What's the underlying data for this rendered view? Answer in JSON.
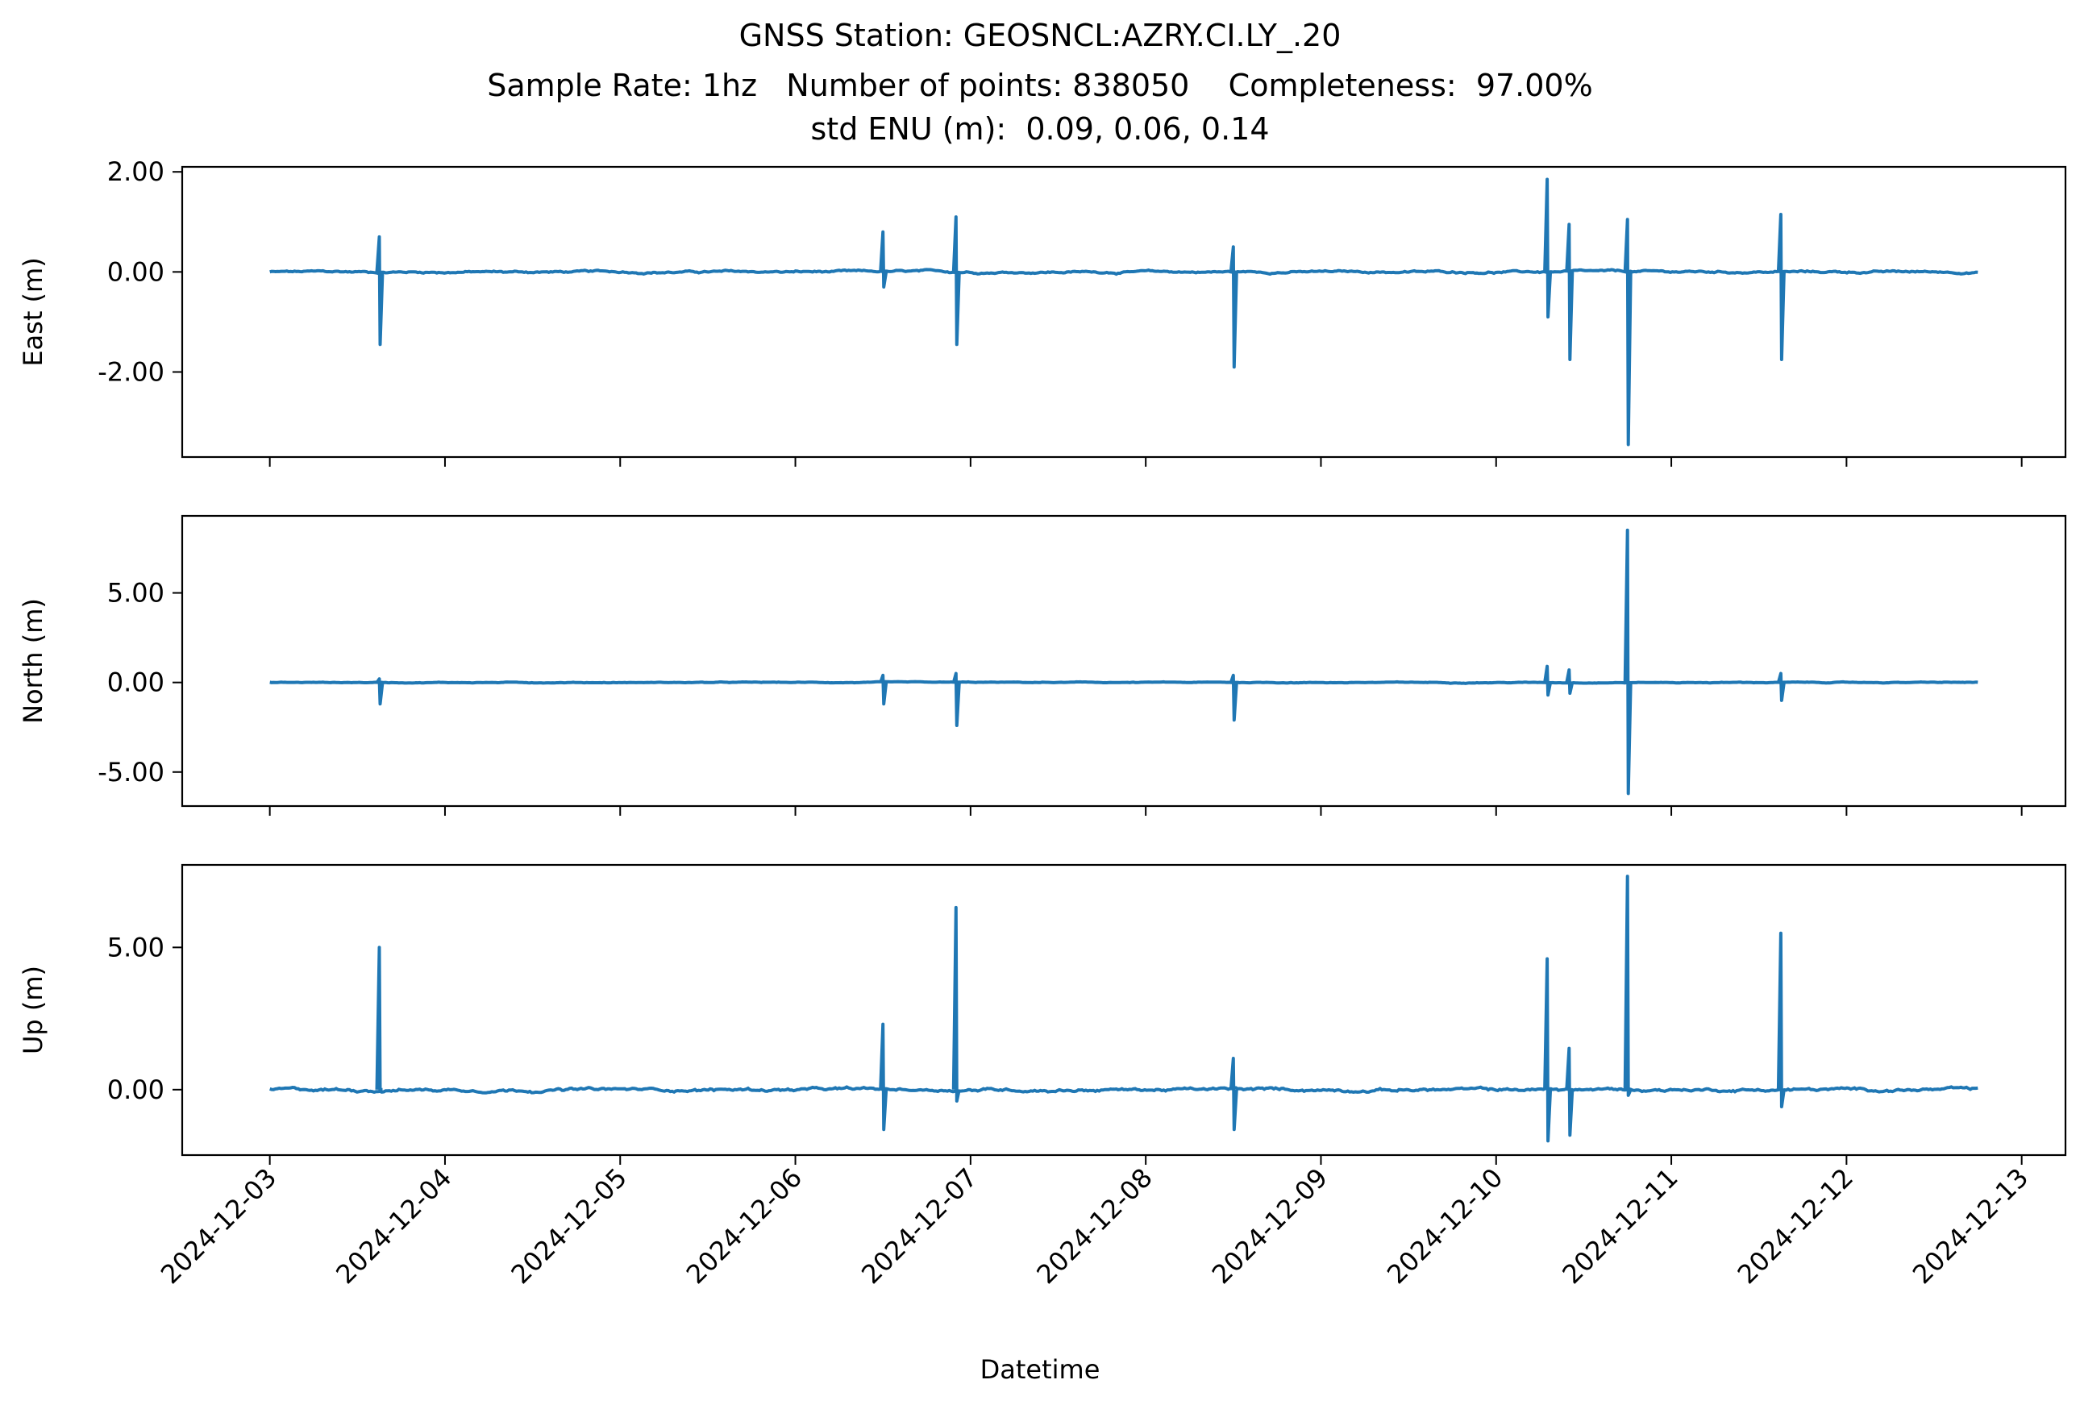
{
  "chart_data": {
    "type": "line",
    "title_lines": [
      "GNSS Station: GEOSNCL:AZRY.CI.LY_.20",
      "Sample Rate: 1hz   Number of points: 838050    Completeness:  97.00%",
      "std ENU (m):  0.09, 0.06, 0.14"
    ],
    "xlabel": "Datetime",
    "x_ticks": [
      "2024-12-03",
      "2024-12-04",
      "2024-12-05",
      "2024-12-06",
      "2024-12-07",
      "2024-12-08",
      "2024-12-09",
      "2024-12-10",
      "2024-12-11",
      "2024-12-12",
      "2024-12-13"
    ],
    "xlim": [
      "2024-12-02T12:00",
      "2024-12-13T06:00"
    ],
    "data_range": [
      "2024-12-03T00:00",
      "2024-12-12T18:00"
    ],
    "series_color": "#1f77b4",
    "panels": [
      {
        "ylabel": "East (m)",
        "ylim": [
          -3.7,
          2.1
        ],
        "yticks": [
          2.0,
          0.0,
          -2.0
        ],
        "ytick_labels": [
          "2.00",
          "0.00",
          "-2.00"
        ],
        "spikes": [
          {
            "t": "2024-12-03T15:00",
            "max": 0.7,
            "min": -1.45
          },
          {
            "t": "2024-12-06T12:00",
            "max": 0.8,
            "min": -0.3
          },
          {
            "t": "2024-12-06T22:00",
            "max": 1.1,
            "min": -1.45
          },
          {
            "t": "2024-12-08T12:00",
            "max": 0.5,
            "min": -1.9
          },
          {
            "t": "2024-12-10T07:00",
            "max": 1.85,
            "min": -0.9
          },
          {
            "t": "2024-12-10T10:00",
            "max": 0.95,
            "min": -1.75
          },
          {
            "t": "2024-12-10T18:00",
            "max": 1.05,
            "min": -3.45
          },
          {
            "t": "2024-12-11T15:00",
            "max": 1.15,
            "min": -1.75
          }
        ]
      },
      {
        "ylabel": "North (m)",
        "ylim": [
          -6.9,
          9.3
        ],
        "yticks": [
          5.0,
          0.0,
          -5.0
        ],
        "ytick_labels": [
          "5.00",
          "0.00",
          "-5.00"
        ],
        "spikes": [
          {
            "t": "2024-12-03T15:00",
            "max": 0.2,
            "min": -1.2
          },
          {
            "t": "2024-12-06T12:00",
            "max": 0.4,
            "min": -1.2
          },
          {
            "t": "2024-12-06T22:00",
            "max": 0.5,
            "min": -2.4
          },
          {
            "t": "2024-12-08T12:00",
            "max": 0.4,
            "min": -2.1
          },
          {
            "t": "2024-12-10T07:00",
            "max": 0.9,
            "min": -0.7
          },
          {
            "t": "2024-12-10T10:00",
            "max": 0.7,
            "min": -0.6
          },
          {
            "t": "2024-12-10T18:00",
            "max": 8.5,
            "min": -6.2
          },
          {
            "t": "2024-12-11T15:00",
            "max": 0.5,
            "min": -1.0
          }
        ]
      },
      {
        "ylabel": "Up (m)",
        "ylim": [
          -2.3,
          7.9
        ],
        "yticks": [
          5.0,
          0.0
        ],
        "ytick_labels": [
          "5.00",
          "0.00"
        ],
        "spikes": [
          {
            "t": "2024-12-03T15:00",
            "max": 5.0,
            "min": 0.0
          },
          {
            "t": "2024-12-06T12:00",
            "max": 2.3,
            "min": -1.4
          },
          {
            "t": "2024-12-06T22:00",
            "max": 6.4,
            "min": -0.4
          },
          {
            "t": "2024-12-08T12:00",
            "max": 1.1,
            "min": -1.4
          },
          {
            "t": "2024-12-10T07:00",
            "max": 4.6,
            "min": -1.8
          },
          {
            "t": "2024-12-10T10:00",
            "max": 1.45,
            "min": -1.6
          },
          {
            "t": "2024-12-10T18:00",
            "max": 7.5,
            "min": -0.2
          },
          {
            "t": "2024-12-11T15:00",
            "max": 5.5,
            "min": -0.6
          }
        ]
      }
    ]
  }
}
